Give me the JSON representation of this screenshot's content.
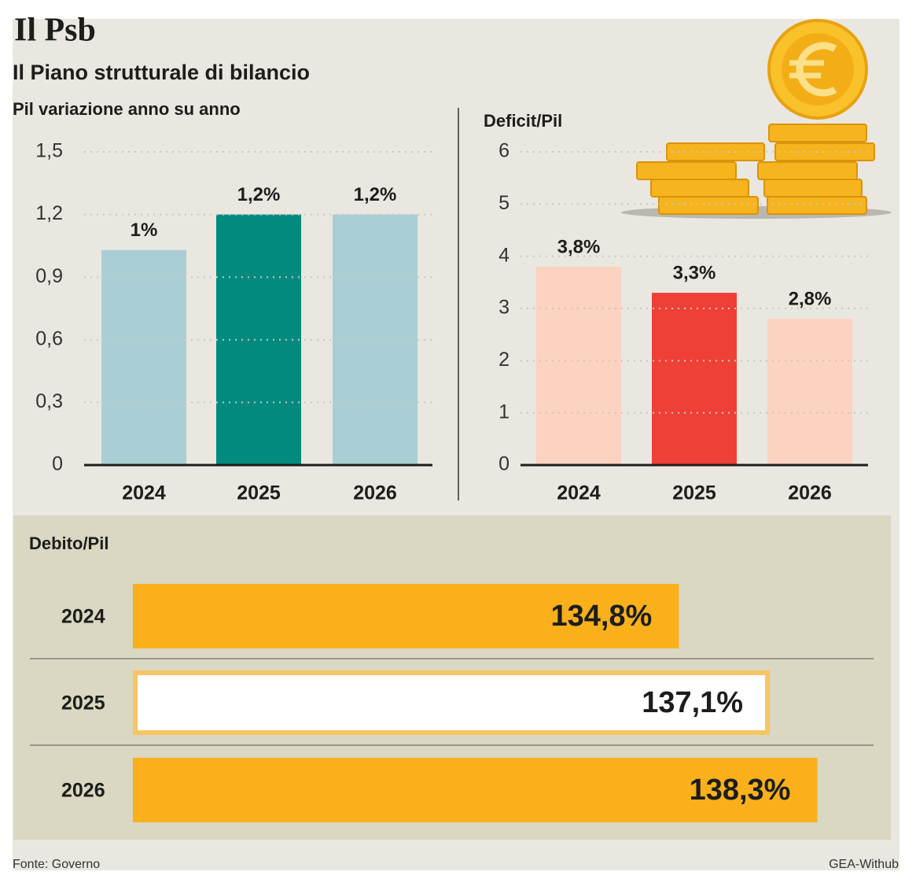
{
  "title": "Il Psb",
  "subtitle": "Il Piano strutturale di bilancio",
  "source": "Fonte: Governo",
  "credit": "GEA-Withub",
  "chart_data": [
    {
      "type": "bar",
      "title": "Pil variazione anno su anno",
      "categories": [
        "2024",
        "2025",
        "2026"
      ],
      "values": [
        1.03,
        1.2,
        1.2
      ],
      "value_labels": [
        "1%",
        "1,2%",
        "1,2%"
      ],
      "colors": [
        "#a9cfd4",
        "#008b7e",
        "#a9cfd4"
      ],
      "ylim": [
        0,
        1.5
      ],
      "yticks": [
        0,
        {
          "value": 0.3,
          "label": "0,3"
        },
        {
          "value": 0.6,
          "label": "0,6"
        },
        {
          "value": 0.9,
          "label": "0,9"
        },
        {
          "value": 1.2,
          "label": "1,2"
        },
        {
          "value": 1.5,
          "label": "1,5"
        }
      ],
      "grid": true
    },
    {
      "type": "bar",
      "title": "Deficit/Pil",
      "categories": [
        "2024",
        "2025",
        "2026"
      ],
      "values": [
        3.8,
        3.3,
        2.8
      ],
      "value_labels": [
        "3,8%",
        "3,3%",
        "2,8%"
      ],
      "colors": [
        "#fcd2c0",
        "#ee4037",
        "#fcd2c0"
      ],
      "ylim": [
        0,
        6
      ],
      "yticks": [
        0,
        1,
        2,
        3,
        4,
        5,
        6
      ],
      "grid": true
    },
    {
      "type": "bar",
      "horizontal": true,
      "title": "Debito/Pil",
      "categories": [
        "2024",
        "2025",
        "2026"
      ],
      "values": [
        134.8,
        137.1,
        138.3
      ],
      "value_labels": [
        "134,8%",
        "137,1%",
        "138,3%"
      ],
      "colors": [
        "#f9b01b",
        "#ffffff",
        "#f9b01b"
      ],
      "stroke": "#f7c565",
      "xlim": [
        121,
        140
      ]
    }
  ]
}
